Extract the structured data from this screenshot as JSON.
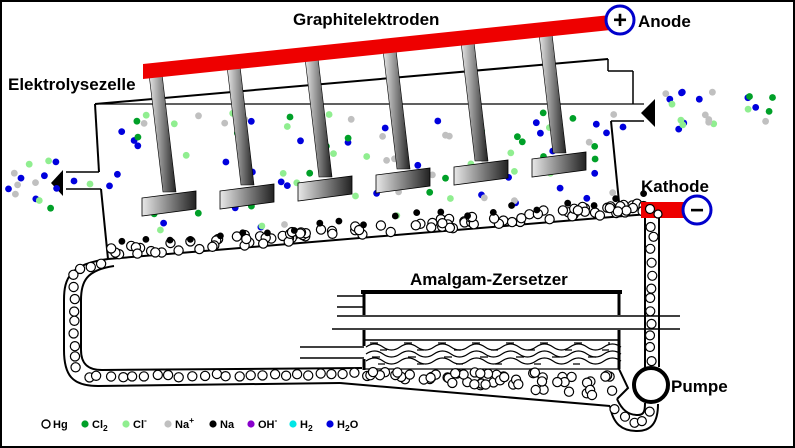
{
  "diagram_title": "Graphitelektroden",
  "labels": {
    "electrolysis_cell": "Elektrolysezelle",
    "anode": "Anode",
    "cathode": "Kathode",
    "amalgam_decomposer": "Amalgam-Zersetzer",
    "pump": "Pumpe"
  },
  "terminals": {
    "anode_sign": "+",
    "cathode_sign": "−"
  },
  "legend": {
    "items": [
      {
        "id": "hg",
        "label": "Hg",
        "pre": "Hg",
        "color": "#ffffff",
        "hollow": true
      },
      {
        "id": "cl2",
        "label": "Cl2",
        "pre": "Cl",
        "sub": "2",
        "color": "#00a028"
      },
      {
        "id": "cl-",
        "label": "Cl-",
        "pre": "Cl",
        "sup": "-",
        "color": "#90ee90"
      },
      {
        "id": "na+",
        "label": "Na+",
        "pre": "Na",
        "sup": "+",
        "color": "#c0c0c0"
      },
      {
        "id": "na",
        "label": "Na",
        "pre": "Na",
        "color": "#000000"
      },
      {
        "id": "oh-",
        "label": "OH-",
        "pre": "OH",
        "sup": "-",
        "color": "#8800cc"
      },
      {
        "id": "h2",
        "label": "H2",
        "pre": "H",
        "sub": "2",
        "color": "#00e6e6"
      },
      {
        "id": "h2o",
        "label": "H2O",
        "pre": "H",
        "sub": "2",
        "post": "O",
        "color": "#0000dd"
      }
    ]
  },
  "colors": {
    "busbar_red": "#ee0000",
    "terminal_blue": "#0000cc",
    "outline_black": "#000000",
    "mercury_white": "#ffffff",
    "h2o_blue": "#0000dd",
    "cl2_green": "#00a028",
    "cl_lightgreen": "#90ee90",
    "na_gray": "#c0c0c0",
    "na_black": "#000000"
  }
}
